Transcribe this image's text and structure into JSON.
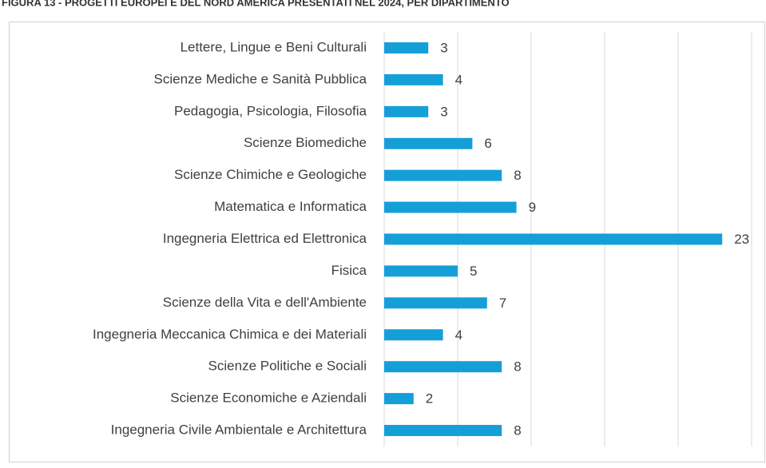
{
  "chart_data": {
    "type": "bar",
    "orientation": "horizontal",
    "title": "FIGURA 13 - PROGETTI EUROPEI E DEL NORD AMERICA PRESENTATI NEL 2024, PER DIPARTIMENTO",
    "categories": [
      "Lettere, Lingue e Beni Culturali",
      "Scienze Mediche e Sanità Pubblica",
      "Pedagogia, Psicologia, Filosofia",
      "Scienze Biomediche",
      "Scienze Chimiche e Geologiche",
      "Matematica e Informatica",
      "Ingegneria Elettrica ed Elettronica",
      "Fisica",
      "Scienze della Vita e dell'Ambiente",
      "Ingegneria Meccanica Chimica e dei Materiali",
      "Scienze Politiche e Sociali",
      "Scienze Economiche e Aziendali",
      "Ingegneria Civile Ambientale e Architettura"
    ],
    "values": [
      3,
      4,
      3,
      6,
      8,
      9,
      23,
      5,
      7,
      4,
      8,
      2,
      8
    ],
    "color": "#159fd8",
    "xlim": [
      0,
      25
    ],
    "xticks": [
      0,
      5,
      10,
      15,
      20,
      25
    ],
    "grid": true
  }
}
